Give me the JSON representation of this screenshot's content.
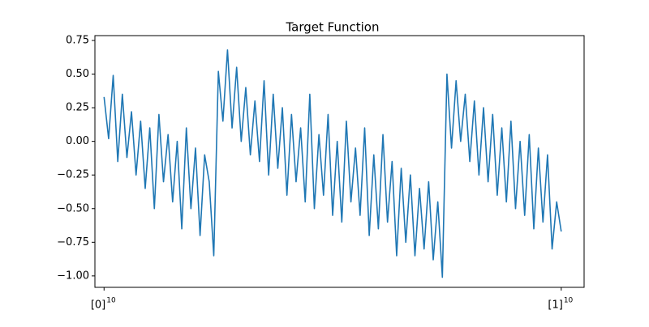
{
  "chart_data": {
    "type": "line",
    "title": "Target Function",
    "x": [
      0.0,
      0.01,
      0.02,
      0.03,
      0.04,
      0.05,
      0.06,
      0.07,
      0.08,
      0.09,
      0.1,
      0.11,
      0.12,
      0.13,
      0.14,
      0.15,
      0.16,
      0.17,
      0.18,
      0.19,
      0.2,
      0.21,
      0.22,
      0.23,
      0.24,
      0.25,
      0.26,
      0.27,
      0.28,
      0.29,
      0.3,
      0.31,
      0.32,
      0.33,
      0.34,
      0.35,
      0.36,
      0.37,
      0.38,
      0.39,
      0.4,
      0.41,
      0.42,
      0.43,
      0.44,
      0.45,
      0.46,
      0.47,
      0.48,
      0.49,
      0.5,
      0.51,
      0.52,
      0.53,
      0.54,
      0.55,
      0.56,
      0.57,
      0.58,
      0.59,
      0.6,
      0.61,
      0.62,
      0.63,
      0.64,
      0.65,
      0.66,
      0.67,
      0.68,
      0.69,
      0.7,
      0.71,
      0.72,
      0.73,
      0.74,
      0.75,
      0.76,
      0.77,
      0.78,
      0.79,
      0.8,
      0.81,
      0.82,
      0.83,
      0.84,
      0.85,
      0.86,
      0.87,
      0.88,
      0.89,
      0.9,
      0.91,
      0.92,
      0.93,
      0.94,
      0.95,
      0.96,
      0.97,
      0.98,
      0.99,
      1.0
    ],
    "series": [
      {
        "color": "#1f77b4",
        "values": [
          0.33,
          0.02,
          0.49,
          -0.15,
          0.35,
          -0.12,
          0.22,
          -0.25,
          0.15,
          -0.35,
          0.1,
          -0.5,
          0.2,
          -0.3,
          0.05,
          -0.45,
          0.0,
          -0.65,
          0.1,
          -0.5,
          -0.05,
          -0.7,
          -0.1,
          -0.3,
          -0.85,
          0.52,
          0.15,
          0.68,
          0.1,
          0.55,
          0.0,
          0.4,
          -0.1,
          0.3,
          -0.15,
          0.45,
          -0.25,
          0.35,
          -0.2,
          0.25,
          -0.4,
          0.2,
          -0.3,
          0.1,
          -0.45,
          0.35,
          -0.5,
          0.05,
          -0.4,
          0.2,
          -0.55,
          0.0,
          -0.6,
          0.15,
          -0.45,
          -0.05,
          -0.55,
          0.1,
          -0.7,
          -0.1,
          -0.65,
          0.05,
          -0.6,
          -0.15,
          -0.85,
          -0.2,
          -0.75,
          -0.25,
          -0.85,
          -0.35,
          -0.8,
          -0.3,
          -0.88,
          -0.45,
          -1.01,
          0.5,
          -0.05,
          0.45,
          0.0,
          0.35,
          -0.15,
          0.3,
          -0.25,
          0.25,
          -0.3,
          0.2,
          -0.4,
          0.1,
          -0.45,
          0.15,
          -0.5,
          0.0,
          -0.55,
          0.05,
          -0.65,
          -0.05,
          -0.6,
          -0.1,
          -0.8,
          -0.45,
          -0.67
        ]
      }
    ],
    "xlim": [
      -0.02,
      1.05
    ],
    "xticks": [
      {
        "value": 0,
        "label": "[0]",
        "exponent": "10"
      },
      {
        "value": 1,
        "label": "[1]",
        "exponent": "10"
      }
    ],
    "ylim": [
      -1.085,
      0.786
    ],
    "yticks": [
      {
        "value": 0.75,
        "label": "0.75"
      },
      {
        "value": 0.5,
        "label": "0.50"
      },
      {
        "value": 0.25,
        "label": "0.25"
      },
      {
        "value": 0,
        "label": "0.00"
      },
      {
        "value": -0.25,
        "label": "−0.25"
      },
      {
        "value": -0.5,
        "label": "−0.50"
      },
      {
        "value": -0.75,
        "label": "−0.75"
      },
      {
        "value": -1,
        "label": "−1.00"
      }
    ]
  }
}
